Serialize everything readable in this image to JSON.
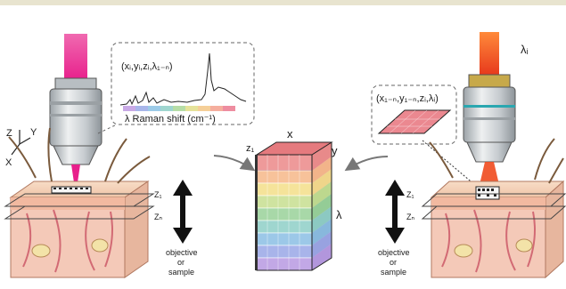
{
  "left_panel": {
    "spectrum_coords": "(xᵢ,yᵢ,zᵢ,λ₁₋ₙ)",
    "spectrum_axis_label": "λ Raman shift (cm⁻¹)",
    "axes": {
      "z": "Z",
      "y": "Y",
      "x": "X"
    },
    "plane_top": "Z₁",
    "plane_bottom": "Zₙ",
    "move_caption_1": "objective",
    "move_caption_2": "or",
    "move_caption_3": "sample",
    "laser_color": "#e8208c"
  },
  "cube": {
    "x_label": "x",
    "y_label": "y",
    "z_label": "z₁",
    "lambda_label": "λ",
    "band_colors": [
      "#f2a3a3",
      "#f7c29a",
      "#f5e39a",
      "#cfe3a0",
      "#a8d8a8",
      "#9fd6cf",
      "#9cc8e8",
      "#a8b4ea",
      "#c2a8e6"
    ]
  },
  "right_panel": {
    "wavelength_label": "λᵢ",
    "image_coords": "(x₁₋ₙ,y₁₋ₙ,zᵢ,λᵢ)",
    "plane_top": "Z₁",
    "plane_bottom": "Zₙ",
    "move_caption_1": "objective",
    "move_caption_2": "or",
    "move_caption_3": "sample",
    "laser_color": "#f04a1e"
  }
}
